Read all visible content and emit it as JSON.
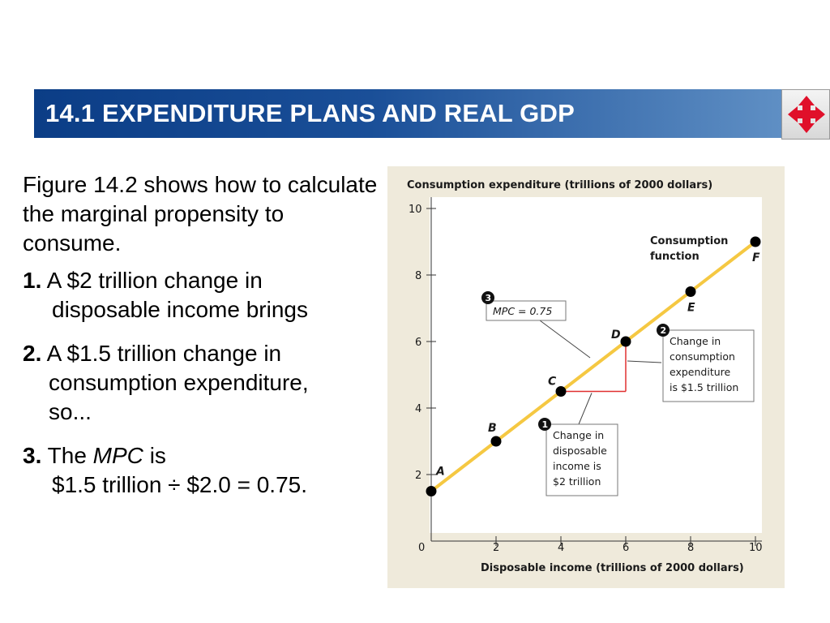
{
  "header": {
    "title": "14.1 EXPENDITURE PLANS AND REAL GDP",
    "nav_icon": "four-way-arrows-icon"
  },
  "text": {
    "intro": "Figure 14.2 shows how to calculate the marginal propensity to consume.",
    "step1_num": "1.",
    "step1_line1": "A $2 trillion change in",
    "step1_line2": "disposable income brings",
    "step2_num": "2.",
    "step2_line1": "A $1.5 trillion change in",
    "step2_line2": "consumption expenditure,",
    "step2_line3": "so...",
    "step3_num": "3.",
    "step3_pre": "The",
    "step3_mpc": "MPC",
    "step3_post": "is",
    "step3_line2": "$1.5 trillion ÷ $2.0 = 0.75."
  },
  "colors": {
    "header_start": "#0b3d86",
    "header_end": "#5f8fc4",
    "figure_bg": "#efeadb",
    "line": "#f5c842",
    "triangle": "#e03030",
    "nav_arrow": "#e0102a"
  },
  "chart_data": {
    "type": "line",
    "title": "",
    "ylabel": "Consumption expenditure (trillions of 2000 dollars)",
    "xlabel": "Disposable income (trillions of 2000 dollars)",
    "xlim": [
      0,
      10
    ],
    "ylim": [
      0,
      10
    ],
    "x_ticks": [
      "0",
      "2",
      "4",
      "6",
      "8",
      "10"
    ],
    "y_ticks": [
      "2",
      "4",
      "6",
      "8",
      "10"
    ],
    "grid": false,
    "series": [
      {
        "name": "Consumption function",
        "points": [
          {
            "label": "A",
            "x": 0,
            "y": 1.5
          },
          {
            "label": "B",
            "x": 2,
            "y": 3.0
          },
          {
            "label": "C",
            "x": 4,
            "y": 4.5
          },
          {
            "label": "D",
            "x": 6,
            "y": 6.0
          },
          {
            "label": "E",
            "x": 8,
            "y": 7.5
          },
          {
            "label": "F",
            "x": 10,
            "y": 9.0
          }
        ]
      }
    ],
    "series_label_line1": "Consumption",
    "series_label_line2": "function",
    "annotations": [
      {
        "badge": "1",
        "lines": [
          "Change in",
          "disposable",
          "income is",
          "$2 trillion"
        ]
      },
      {
        "badge": "2",
        "lines": [
          "Change in",
          "consumption",
          "expenditure",
          "is $1.5 trillion"
        ]
      },
      {
        "badge": "3",
        "text": "MPC = 0.75"
      }
    ]
  }
}
